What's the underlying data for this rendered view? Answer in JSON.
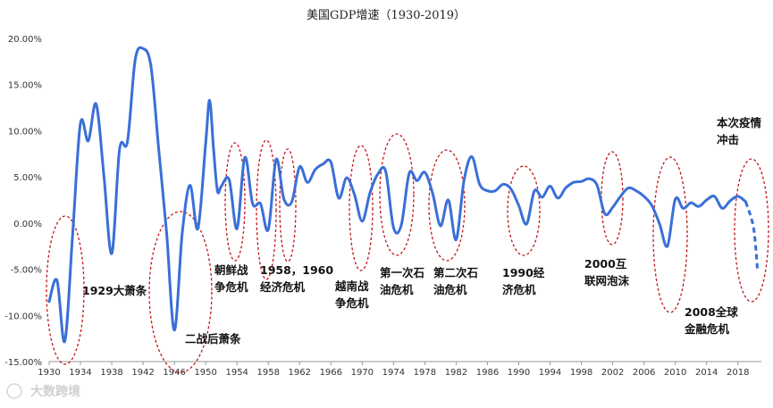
{
  "chart_data": {
    "type": "line",
    "title": "美国GDP增速（1930-2019）",
    "xlabel": "",
    "ylabel": "",
    "ylim": [
      -0.15,
      0.2
    ],
    "y_ticks": [
      {
        "value": 0.2,
        "label": "20.00%"
      },
      {
        "value": 0.15,
        "label": "15.00%"
      },
      {
        "value": 0.1,
        "label": "10.00%"
      },
      {
        "value": 0.05,
        "label": "5.00%"
      },
      {
        "value": 0.0,
        "label": "0.00%"
      },
      {
        "value": -0.05,
        "label": "-5.00%"
      },
      {
        "value": -0.1,
        "label": "-10.00%"
      },
      {
        "value": -0.15,
        "label": "-15.00%"
      }
    ],
    "xlim": [
      1930,
      2021
    ],
    "x_ticks": [
      1930,
      1934,
      1938,
      1942,
      1946,
      1950,
      1954,
      1958,
      1962,
      1966,
      1970,
      1974,
      1978,
      1982,
      1986,
      1990,
      1994,
      1998,
      2002,
      2006,
      2010,
      2014,
      2018
    ],
    "x_tick_labels": [
      "1930",
      "1934",
      "1938",
      "1942",
      "1946",
      "1950",
      "1954",
      "1958",
      "1962",
      "1966",
      "1970",
      "1974",
      "1978",
      "1982",
      "1986",
      "1990",
      "1994",
      "1998",
      "2002",
      "2006",
      "2010",
      "2014",
      "2018"
    ],
    "series": [
      {
        "name": "GDP增速",
        "color": "#3A6FD8",
        "points": [
          [
            1930,
            -0.085
          ],
          [
            1931,
            -0.062
          ],
          [
            1932,
            -0.128
          ],
          [
            1933,
            -0.012
          ],
          [
            1934,
            0.108
          ],
          [
            1935,
            0.089
          ],
          [
            1936,
            0.129
          ],
          [
            1937,
            0.051
          ],
          [
            1938,
            -0.033
          ],
          [
            1939,
            0.08
          ],
          [
            1940,
            0.088
          ],
          [
            1941,
            0.177
          ],
          [
            1942,
            0.189
          ],
          [
            1943,
            0.17
          ],
          [
            1944,
            0.08
          ],
          [
            1945,
            -0.01
          ],
          [
            1946,
            -0.116
          ],
          [
            1947,
            -0.011
          ],
          [
            1948,
            0.041
          ],
          [
            1949,
            -0.006
          ],
          [
            1950,
            0.087
          ],
          [
            1950.5,
            0.133
          ],
          [
            1951,
            0.081
          ],
          [
            1951.5,
            0.035
          ],
          [
            1952,
            0.04
          ],
          [
            1953,
            0.047
          ],
          [
            1954,
            -0.006
          ],
          [
            1955,
            0.071
          ],
          [
            1956,
            0.021
          ],
          [
            1957,
            0.021
          ],
          [
            1958,
            -0.007
          ],
          [
            1959,
            0.069
          ],
          [
            1960,
            0.026
          ],
          [
            1961,
            0.023
          ],
          [
            1962,
            0.061
          ],
          [
            1963,
            0.044
          ],
          [
            1964,
            0.058
          ],
          [
            1965,
            0.064
          ],
          [
            1966,
            0.066
          ],
          [
            1967,
            0.027
          ],
          [
            1968,
            0.049
          ],
          [
            1969,
            0.031
          ],
          [
            1970,
            0.002
          ],
          [
            1971,
            0.033
          ],
          [
            1972,
            0.053
          ],
          [
            1973,
            0.056
          ],
          [
            1974,
            -0.005
          ],
          [
            1975,
            -0.002
          ],
          [
            1976,
            0.054
          ],
          [
            1977,
            0.046
          ],
          [
            1978,
            0.055
          ],
          [
            1979,
            0.032
          ],
          [
            1980,
            -0.003
          ],
          [
            1981,
            0.025
          ],
          [
            1982,
            -0.018
          ],
          [
            1983,
            0.046
          ],
          [
            1984,
            0.072
          ],
          [
            1985,
            0.042
          ],
          [
            1986,
            0.035
          ],
          [
            1987,
            0.035
          ],
          [
            1988,
            0.042
          ],
          [
            1989,
            0.037
          ],
          [
            1990,
            0.019
          ],
          [
            1991,
            -0.001
          ],
          [
            1992,
            0.035
          ],
          [
            1993,
            0.028
          ],
          [
            1994,
            0.04
          ],
          [
            1995,
            0.027
          ],
          [
            1996,
            0.038
          ],
          [
            1997,
            0.044
          ],
          [
            1998,
            0.045
          ],
          [
            1999,
            0.048
          ],
          [
            2000,
            0.041
          ],
          [
            2001,
            0.01
          ],
          [
            2002,
            0.017
          ],
          [
            2003,
            0.029
          ],
          [
            2004,
            0.038
          ],
          [
            2005,
            0.035
          ],
          [
            2006,
            0.029
          ],
          [
            2007,
            0.019
          ],
          [
            2008,
            -0.001
          ],
          [
            2009,
            -0.025
          ],
          [
            2010,
            0.026
          ],
          [
            2011,
            0.016
          ],
          [
            2012,
            0.022
          ],
          [
            2013,
            0.018
          ],
          [
            2014,
            0.025
          ],
          [
            2015,
            0.029
          ],
          [
            2016,
            0.016
          ],
          [
            2017,
            0.024
          ],
          [
            2018,
            0.029
          ],
          [
            2019,
            0.023
          ]
        ],
        "forecast_points": [
          [
            2019,
            0.023
          ],
          [
            2020,
            -0.005
          ],
          [
            2020.5,
            -0.05
          ]
        ]
      }
    ],
    "annotations": [
      {
        "text": "1929大萧条"
      },
      {
        "text": "二战后萧条"
      },
      {
        "text": "朝鲜战\n争危机"
      },
      {
        "text": "1958，1960\n经济危机"
      },
      {
        "text": "越南战\n争危机"
      },
      {
        "text": "第一次石\n油危机"
      },
      {
        "text": "第二次石\n油危机"
      },
      {
        "text": "1990经\n济危机"
      },
      {
        "text": "2000互\n联网泡沫"
      },
      {
        "text": "2008全球\n金融危机"
      },
      {
        "text": "本次疫情\n冲击"
      }
    ],
    "highlight_color": "#C0161B",
    "grid": false,
    "legend": "none"
  },
  "watermark": {
    "text": "大数跨境"
  }
}
